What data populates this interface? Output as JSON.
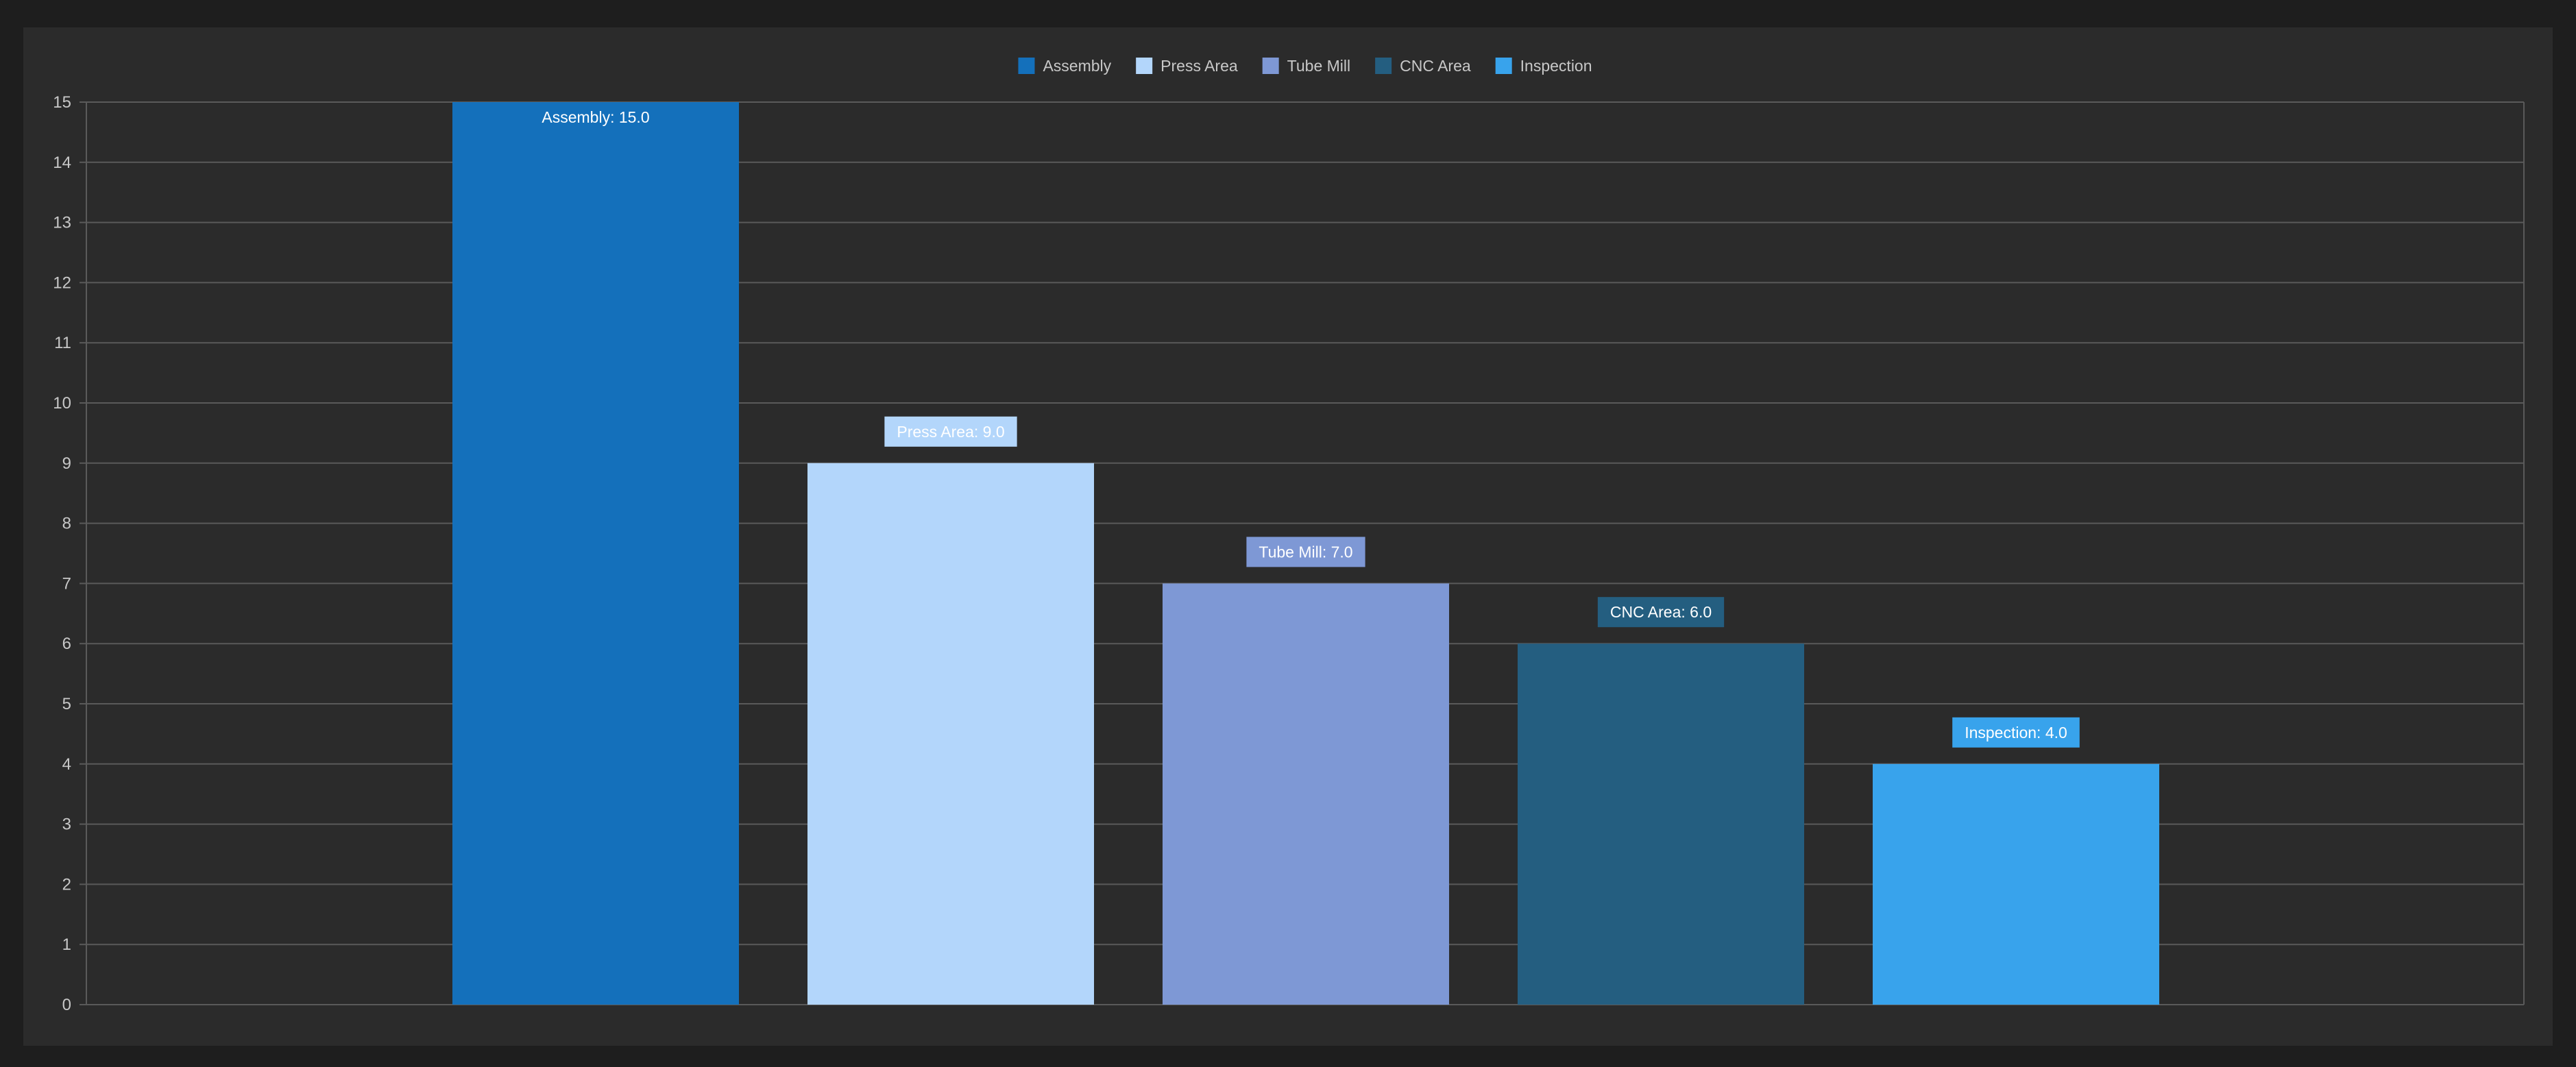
{
  "chart_data": {
    "type": "bar",
    "categories": [
      "Assembly",
      "Press Area",
      "Tube Mill",
      "CNC Area",
      "Inspection"
    ],
    "values": [
      15.0,
      9.0,
      7.0,
      6.0,
      4.0
    ],
    "data_labels": [
      "Assembly: 15.0",
      "Press Area: 9.0",
      "Tube Mill: 7.0",
      "CNC Area: 6.0",
      "Inspection: 4.0"
    ],
    "colors": [
      "#1470bb",
      "#b3d6fb",
      "#7e98d5",
      "#245e80",
      "#38a3ec"
    ],
    "label_bg_colors": [
      "none",
      "#b3d6fb",
      "#7e98d5",
      "#245e80",
      "#38a3ec"
    ],
    "legend": {
      "position": "top-center",
      "items": [
        "Assembly",
        "Press Area",
        "Tube Mill",
        "CNC Area",
        "Inspection"
      ]
    },
    "yticks": [
      "0",
      "1",
      "2",
      "3",
      "4",
      "5",
      "6",
      "7",
      "8",
      "9",
      "10",
      "11",
      "12",
      "13",
      "14",
      "15"
    ],
    "ylim": [
      0,
      15
    ],
    "grid": true,
    "title": "",
    "xlabel": "",
    "ylabel": ""
  }
}
